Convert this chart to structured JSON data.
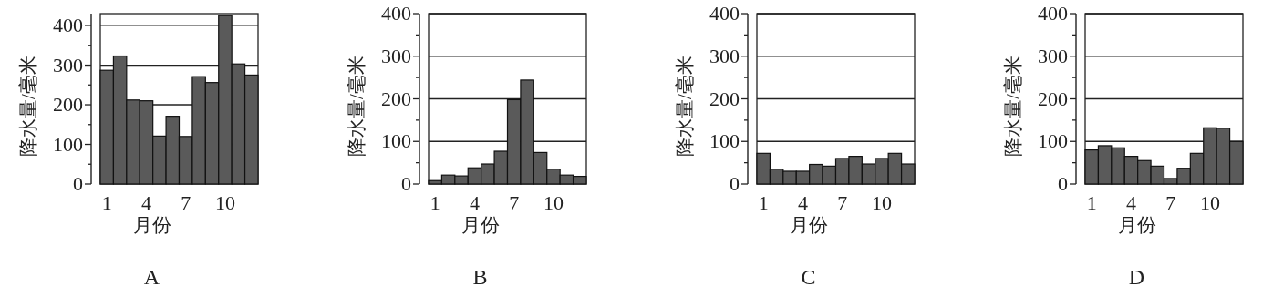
{
  "chart_data": [
    {
      "type": "bar",
      "title": "A",
      "xlabel": "月份",
      "ylabel": "降水量/毫米",
      "categories": [
        "1",
        null,
        null,
        "4",
        null,
        null,
        "7",
        null,
        null,
        "10",
        null,
        null
      ],
      "values": [
        287,
        323,
        212,
        210,
        121,
        171,
        120,
        271,
        256,
        425,
        303,
        275
      ],
      "color": "#5a5a5a",
      "ylim": [
        0,
        430
      ],
      "yticks": [
        0,
        {
          "value": 50,
          "label": null
        },
        100,
        {
          "value": 150,
          "label": null
        },
        200,
        {
          "value": 250,
          "label": null
        },
        300,
        {
          "value": 350,
          "label": null
        },
        400
      ],
      "grid": "y"
    },
    {
      "type": "bar",
      "title": "B",
      "xlabel": "月份",
      "ylabel": "降水量/毫米",
      "categories": [
        "1",
        null,
        null,
        "4",
        null,
        null,
        "7",
        null,
        null,
        "10",
        null,
        null
      ],
      "values": [
        8,
        21,
        19,
        38,
        47,
        77,
        198,
        244,
        74,
        35,
        21,
        18
      ],
      "color": "#5a5a5a",
      "ylim": [
        0,
        400
      ],
      "yticks": [
        0,
        {
          "value": 50,
          "label": null
        },
        100,
        {
          "value": 150,
          "label": null
        },
        200,
        {
          "value": 250,
          "label": null
        },
        300,
        {
          "value": 350,
          "label": null
        },
        400
      ],
      "grid": "y"
    },
    {
      "type": "bar",
      "title": "C",
      "xlabel": "月份",
      "ylabel": "降水量/毫米",
      "categories": [
        "1",
        null,
        null,
        "4",
        null,
        null,
        "7",
        null,
        null,
        "10",
        null,
        null
      ],
      "values": [
        72,
        35,
        30,
        30,
        46,
        42,
        60,
        65,
        47,
        60,
        72,
        47
      ],
      "color": "#5a5a5a",
      "ylim": [
        0,
        400
      ],
      "yticks": [
        0,
        {
          "value": 50,
          "label": null
        },
        100,
        {
          "value": 150,
          "label": null
        },
        200,
        {
          "value": 250,
          "label": null
        },
        300,
        {
          "value": 350,
          "label": null
        },
        400
      ],
      "grid": "y"
    },
    {
      "type": "bar",
      "title": "D",
      "xlabel": "月份",
      "ylabel": "降水量/毫米",
      "categories": [
        "1",
        null,
        null,
        "4",
        null,
        null,
        "7",
        null,
        null,
        "10",
        null,
        null
      ],
      "values": [
        80,
        90,
        85,
        65,
        55,
        42,
        13,
        37,
        72,
        132,
        131,
        100
      ],
      "color": "#5a5a5a",
      "ylim": [
        0,
        400
      ],
      "yticks": [
        0,
        {
          "value": 50,
          "label": null
        },
        100,
        {
          "value": 150,
          "label": null
        },
        200,
        {
          "value": 250,
          "label": null
        },
        300,
        {
          "value": 350,
          "label": null
        },
        400
      ],
      "grid": "y"
    }
  ]
}
